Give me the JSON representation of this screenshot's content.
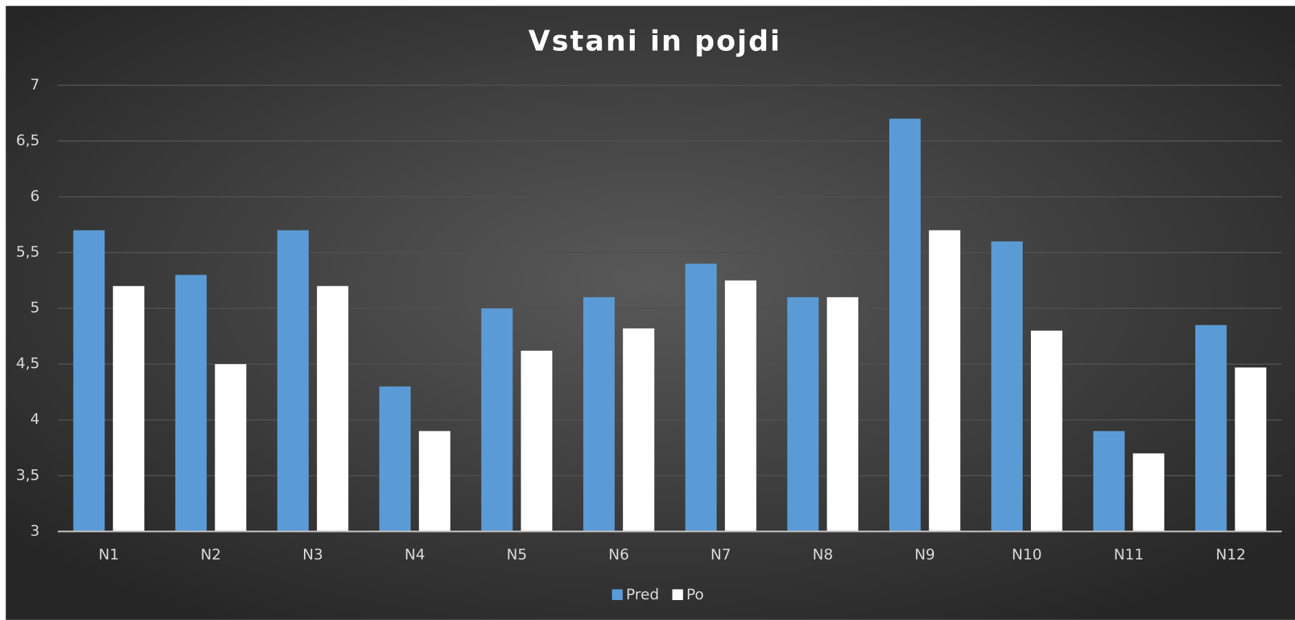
{
  "chart_data": {
    "type": "bar",
    "title": "Vstani in pojdi",
    "categories": [
      "N1",
      "N2",
      "N3",
      "N4",
      "N5",
      "N6",
      "N7",
      "N8",
      "N9",
      "N10",
      "N11",
      "N12"
    ],
    "series": [
      {
        "name": "Pred",
        "color": "#5b9bd5",
        "values": [
          5.7,
          5.3,
          5.7,
          4.3,
          5.0,
          5.1,
          5.4,
          5.1,
          6.7,
          5.6,
          3.9,
          4.85
        ]
      },
      {
        "name": "Po",
        "color": "#ffffff",
        "values": [
          5.2,
          4.5,
          5.2,
          3.9,
          4.62,
          4.82,
          5.25,
          5.1,
          5.7,
          4.8,
          3.7,
          4.47
        ]
      }
    ],
    "ylim": [
      3,
      7
    ],
    "yticks": [
      3,
      {
        "value": 3.5,
        "label": "3,5"
      },
      4,
      {
        "value": 4.5,
        "label": "4,5"
      },
      5,
      {
        "value": 5.5,
        "label": "5,5"
      },
      6,
      {
        "value": 6.5,
        "label": "6,5"
      },
      7
    ],
    "grid": true,
    "legend": "bottom"
  }
}
